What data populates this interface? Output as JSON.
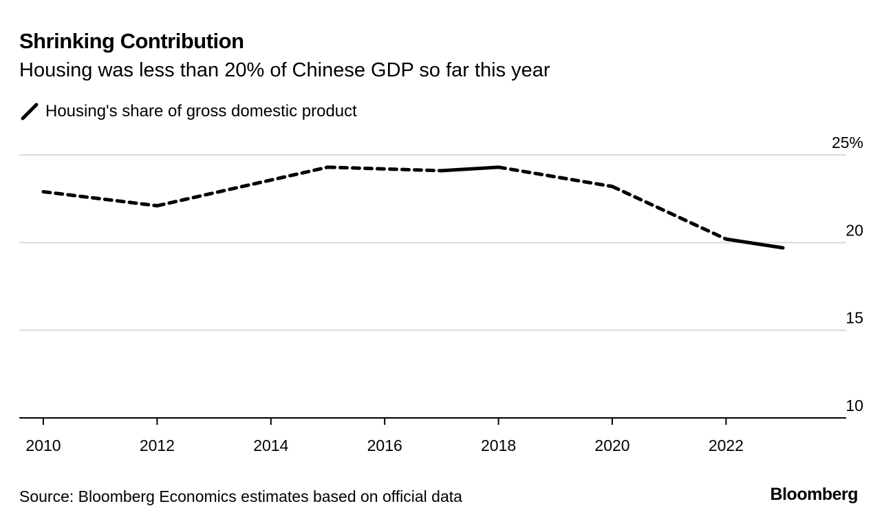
{
  "title": "Shrinking Contribution",
  "subtitle": "Housing was less than 20% of Chinese GDP so far this year",
  "source": "Source: Bloomberg Economics estimates based on official data",
  "brand": "Bloomberg",
  "chart_data": {
    "type": "line",
    "title": "Shrinking Contribution",
    "subtitle": "Housing was less than 20% of Chinese GDP so far this year",
    "xlabel": "",
    "ylabel": "",
    "xlim": [
      2009.6,
      2024.6
    ],
    "ylim": [
      10,
      25
    ],
    "grid": true,
    "legend_placement": "top-left",
    "x_ticks": [
      "2010",
      "2012",
      "2014",
      "2016",
      "2018",
      "2020",
      "2022"
    ],
    "y_ticks": [
      "10",
      "15",
      "20",
      "25%"
    ],
    "y_tick_values": [
      10,
      15,
      20,
      25
    ],
    "line_color": "#000000",
    "grid_color": "#d9d9d9",
    "series": [
      {
        "name": "Housing's share of gross domestic product",
        "x": [
          2010,
          2012,
          2015,
          2017,
          2018,
          2020,
          2022,
          2023
        ],
        "y": [
          22.9,
          22.1,
          24.3,
          24.1,
          24.3,
          23.2,
          20.2,
          19.7
        ],
        "segment_styles": [
          "dashed",
          "dashed",
          "dashed",
          "solid",
          "dashed",
          "dashed",
          "solid"
        ]
      }
    ]
  }
}
